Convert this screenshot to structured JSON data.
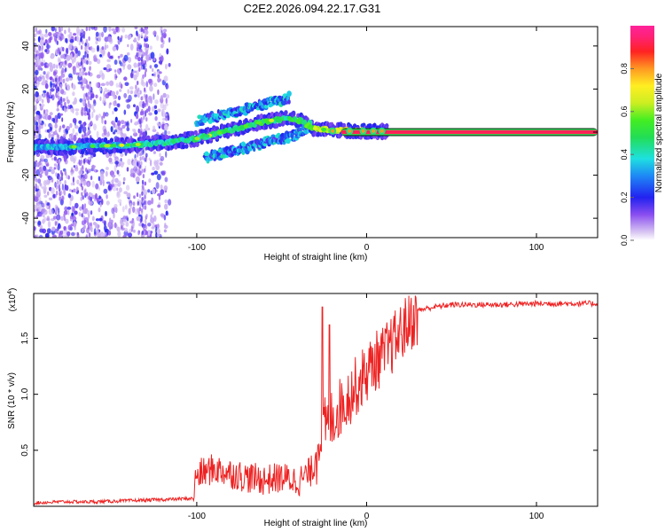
{
  "figure": {
    "title": "C2E2.2026.094.22.17.G31"
  },
  "chart_data": [
    {
      "type": "heatmap",
      "title": "C2E2.2026.094.22.17.G31",
      "xlabel": "Height of straight line (km)",
      "ylabel": "Frequency (Hz)",
      "xlim": [
        -196,
        136
      ],
      "ylim": [
        -49,
        49
      ],
      "x_ticks": [
        -100,
        0,
        100
      ],
      "x_tick_labels": [
        "-100",
        "0",
        "100"
      ],
      "y_ticks": [
        -40,
        -20,
        0,
        20,
        40
      ],
      "y_tick_labels": [
        "-40",
        "-20",
        "0",
        "20",
        "40"
      ],
      "colorbar": {
        "label": "Normalized spectral amplitude",
        "range": [
          0,
          1
        ],
        "ticks": [
          0.0,
          0.2,
          0.4,
          0.6,
          0.8
        ],
        "tick_labels": [
          "0.0",
          "0.2",
          "0.4",
          "0.6",
          "0.8"
        ]
      },
      "ridge": {
        "description": "main frequency track (data units)",
        "x": [
          -196,
          -180,
          -160,
          -140,
          -120,
          -100,
          -80,
          -60,
          -45,
          -38,
          -33,
          -25,
          -15,
          0,
          10,
          136
        ],
        "y": [
          -7,
          -7,
          -6.5,
          -6,
          -5,
          -3,
          1,
          5,
          6.5,
          5,
          2,
          1.2,
          0.8,
          0.5,
          0.3,
          0
        ],
        "amplitude": [
          0.35,
          0.35,
          0.38,
          0.4,
          0.45,
          0.5,
          0.5,
          0.55,
          0.5,
          0.55,
          0.65,
          0.75,
          0.8,
          0.85,
          0.95,
          0.97
        ]
      },
      "upper_branch": {
        "x": [
          -100,
          -85,
          -70,
          -55,
          -45
        ],
        "y": [
          5,
          8,
          11,
          14,
          16
        ]
      },
      "lower_branch": {
        "x": [
          -95,
          -80,
          -65,
          -50,
          -40,
          -33
        ],
        "y": [
          -12,
          -9,
          -6,
          -3,
          -1,
          3
        ]
      }
    },
    {
      "type": "line",
      "xlabel": "Height of straight line (km)",
      "ylabel": "SNR (10 * v/v)",
      "y_scale_label": "(x10",
      "y_scale_exponent": "4",
      "xlim": [
        -196,
        136
      ],
      "ylim": [
        0,
        1.9
      ],
      "x_ticks": [
        -100,
        0,
        100
      ],
      "x_tick_labels": [
        "-100",
        "0",
        "100"
      ],
      "y_ticks": [
        0.5,
        1.0,
        1.5
      ],
      "y_tick_labels": [
        "0.5",
        "1.0",
        "1.5"
      ],
      "color": "#ee2222",
      "series": [
        {
          "name": "SNR",
          "x": [
            -196,
            -180,
            -160,
            -140,
            -120,
            -102,
            -100,
            -90,
            -80,
            -70,
            -60,
            -50,
            -40,
            -33,
            -31,
            -28,
            -25,
            -20,
            -15,
            -10,
            -5,
            0,
            5,
            10,
            15,
            20,
            25,
            30,
            40,
            50,
            60,
            80,
            100,
            120,
            136
          ],
          "y": [
            0.03,
            0.04,
            0.04,
            0.05,
            0.06,
            0.07,
            0.22,
            0.28,
            0.24,
            0.2,
            0.18,
            0.2,
            0.17,
            0.25,
            0.3,
            0.7,
            0.75,
            0.85,
            0.95,
            1.05,
            1.15,
            1.25,
            1.35,
            1.4,
            1.5,
            1.6,
            1.7,
            1.75,
            1.78,
            1.8,
            1.8,
            1.8,
            1.81,
            1.81,
            1.81
          ]
        }
      ]
    }
  ]
}
